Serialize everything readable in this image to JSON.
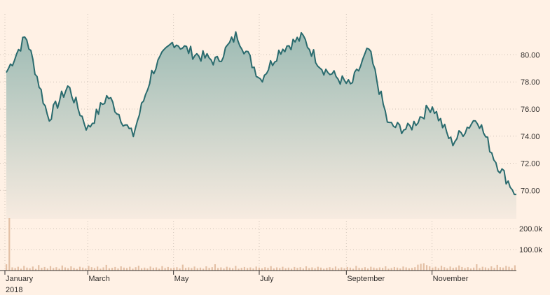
{
  "chart_data": {
    "type": "area",
    "price": {
      "y_ticks": [
        "70.00",
        "72.00",
        "74.00",
        "76.00",
        "78.00",
        "80.00"
      ],
      "ylim": [
        67.9,
        82.5
      ],
      "x": [
        "2018-01-02",
        "2018-01-16",
        "2018-02-01",
        "2018-02-15",
        "2018-03-01",
        "2018-03-15",
        "2018-04-02",
        "2018-04-16",
        "2018-05-01",
        "2018-05-15",
        "2018-06-01",
        "2018-06-15",
        "2018-07-02",
        "2018-07-16",
        "2018-08-01",
        "2018-08-15",
        "2018-09-04",
        "2018-09-17",
        "2018-10-01",
        "2018-10-15",
        "2018-11-01",
        "2018-11-15",
        "2018-12-03",
        "2018-12-17",
        "2018-12-31"
      ],
      "values": [
        78.7,
        81.4,
        75.3,
        77.7,
        74.5,
        77.0,
        74.0,
        78.8,
        81.0,
        80.1,
        79.5,
        81.5,
        78.2,
        80.4,
        81.3,
        79.0,
        77.7,
        80.4,
        74.8,
        74.5,
        76.3,
        73.5,
        75.4,
        72.0,
        69.7
      ]
    },
    "volume": {
      "y_ticks": [
        "100.0k",
        "200.0k"
      ],
      "ylim": [
        0,
        290000
      ],
      "values": [
        30000,
        250000,
        15000,
        12000,
        18000,
        9000,
        22000,
        14000,
        11000,
        19000,
        8000,
        26000,
        13000,
        17000,
        10000,
        21000,
        12000,
        16000,
        9000,
        24000,
        15000,
        11000,
        20000,
        13000,
        8000,
        18000,
        14000,
        10000,
        22000,
        16000,
        12000,
        19000,
        9000,
        15000,
        27000,
        11000,
        13000,
        17000,
        10000,
        20000,
        14000,
        12000,
        18000,
        9000,
        16000,
        23000,
        11000,
        14000,
        10000,
        19000,
        13000,
        15000,
        9000,
        21000,
        12000,
        17000,
        11000,
        14000,
        16000,
        10000,
        28000,
        13000,
        15000,
        12000,
        19000,
        11000,
        14000,
        9000,
        20000,
        13000,
        16000,
        30000,
        12000,
        15000,
        10000,
        18000,
        14000,
        11000,
        22000,
        9000,
        13000,
        17000,
        12000,
        15000,
        10000,
        19000,
        14000,
        11000,
        16000,
        13000,
        21000,
        10000,
        15000,
        12000,
        18000,
        11000,
        14000,
        9000,
        17000,
        13000,
        16000,
        10000,
        20000,
        12000,
        15000,
        11000,
        18000,
        14000,
        9000,
        13000,
        16000,
        12000,
        19000,
        10000,
        15000,
        11000,
        17000,
        14000,
        9000,
        22000,
        13000,
        12000,
        16000,
        10000,
        18000,
        14000,
        11000,
        15000,
        13000,
        20000,
        9000,
        12000,
        17000,
        14000,
        10000,
        19000,
        15000,
        11000,
        13000,
        16000,
        28000,
        32000,
        35000,
        26000,
        20000,
        14000,
        18000,
        12000,
        23000,
        16000,
        11000,
        19000,
        13000,
        15000,
        24000,
        17000,
        12000,
        16000,
        10000,
        14000,
        30000,
        12000,
        18000,
        15000,
        11000,
        20000,
        13000,
        27000,
        16000,
        14000,
        22000,
        18000,
        12000,
        25000
      ]
    },
    "x_tick_labels": [
      "January",
      "March",
      "May",
      "July",
      "September",
      "November"
    ],
    "x_tick_positions": [
      "2018-01-01",
      "2018-03-01",
      "2018-05-01",
      "2018-07-01",
      "2018-09-01",
      "2018-11-01"
    ],
    "year_label": "2018",
    "xlim": [
      "2018-01-01",
      "2018-12-31"
    ],
    "grid": true,
    "colors": {
      "background": "#fff1e5",
      "line": "#2a6b6e",
      "fill_top": "#9dbbb4",
      "fill_bottom": "#f7ebe0",
      "volume": "#e3bfa4",
      "grid": "#cfc3b8",
      "text": "#33302e"
    }
  }
}
